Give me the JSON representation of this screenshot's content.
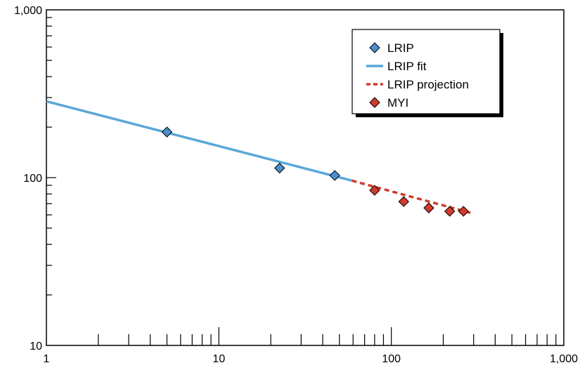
{
  "chart_data": {
    "type": "scatter",
    "title": "",
    "xlabel": "",
    "ylabel": "",
    "x_scale": "log",
    "y_scale": "log",
    "xlim": [
      1,
      1000
    ],
    "ylim": [
      10,
      1000
    ],
    "grid": false,
    "legend_position": "top-right",
    "x_tick_labels": [
      "1",
      "10",
      "100",
      "1,000"
    ],
    "y_tick_labels": [
      "10",
      "100",
      "1,000"
    ],
    "series": [
      {
        "name": "LRIP",
        "kind": "markers",
        "marker": "diamond",
        "color": "#4a8fcc",
        "points": [
          [
            5,
            187
          ],
          [
            22.5,
            114
          ],
          [
            47,
            103
          ]
        ]
      },
      {
        "name": "LRIP fit",
        "kind": "line",
        "color": "#5aa7d8",
        "points": [
          [
            1,
            285
          ],
          [
            59,
            96
          ]
        ]
      },
      {
        "name": "LRIP projection",
        "kind": "dashed-line",
        "color": "#d03b2b",
        "points": [
          [
            59,
            96
          ],
          [
            300,
            61
          ]
        ]
      },
      {
        "name": "MYI",
        "kind": "markers",
        "marker": "diamond",
        "color": "#d03b2b",
        "points": [
          [
            80,
            84
          ],
          [
            118,
            72
          ],
          [
            165,
            66
          ],
          [
            218,
            63
          ],
          [
            262,
            63
          ]
        ]
      }
    ]
  }
}
